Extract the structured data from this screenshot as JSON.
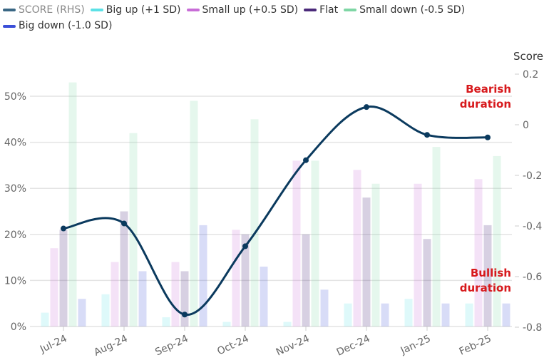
{
  "chart_data": {
    "type": "bar",
    "categories": [
      "Jul-24",
      "Aug-24",
      "Sep-24",
      "Oct-24",
      "Nov-24",
      "Dec-24",
      "Jan-25",
      "Feb-25"
    ],
    "series": [
      {
        "name": "Big up (+1 SD)",
        "color": "#5ce1e6",
        "values": [
          3,
          7,
          2,
          1,
          1,
          5,
          6,
          5
        ]
      },
      {
        "name": "Small up (+0.5 SD)",
        "color": "#c86dd7",
        "values": [
          17,
          14,
          14,
          21,
          36,
          34,
          31,
          32
        ]
      },
      {
        "name": "Flat",
        "color": "#4b2a7a",
        "values": [
          21,
          25,
          12,
          20,
          20,
          28,
          19,
          22
        ]
      },
      {
        "name": "Small down (-0.5 SD)",
        "color": "#7fd6a5",
        "values": [
          53,
          42,
          49,
          45,
          36,
          31,
          39,
          37
        ]
      },
      {
        "name": "Big down (-1.0 SD)",
        "color": "#3b4fd8",
        "values": [
          6,
          12,
          22,
          13,
          8,
          5,
          5,
          5
        ]
      }
    ],
    "line_series": {
      "name": "SCORE (RHS)",
      "color": "#0b3a5e",
      "values": [
        -0.41,
        -0.39,
        -0.75,
        -0.48,
        -0.14,
        0.07,
        -0.04,
        -0.05
      ]
    },
    "ylim": [
      0,
      55
    ],
    "y_ticks": [
      "0%",
      "10%",
      "20%",
      "30%",
      "40%",
      "50%"
    ],
    "y2label": "Score",
    "y2lim": [
      -0.8,
      0.2
    ],
    "y2_ticks": [
      "-0.8",
      "-0.6",
      "-0.4",
      "-0.2",
      "0",
      "0.2"
    ],
    "annotations": {
      "top": [
        "Bearish",
        "duration"
      ],
      "bottom": [
        "Bullish",
        "duration"
      ]
    },
    "annotation_color": "#d7191c",
    "legend": "top-left",
    "grid": true
  }
}
